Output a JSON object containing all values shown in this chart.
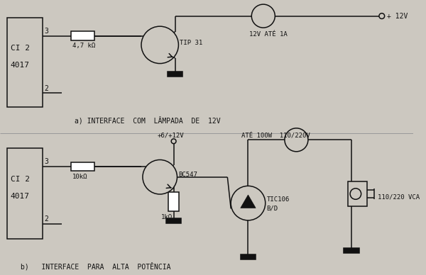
{
  "bg": "#ccc8c0",
  "lc": "#111111",
  "lw": 1.1,
  "title_a": "a) INTERFACE  COM  LÂMPADA  DE  12V",
  "title_b": "b)   INTERFACE  PARA  ALTA  POTÊNCIA",
  "r1_label": "4,7 kΩ",
  "tip31": "TIP 31",
  "label_12v": "12V ATÉ 1A",
  "plus12v": "+ 12V",
  "plus6_12v": "+6/+12V",
  "r2_label": "10kΩ",
  "r3_label": "1kΩ",
  "bc547": "BC547",
  "tic106_a": "TIC106",
  "tic106_b": "B/D",
  "ate100w": "ATÉ 100W  110/220V",
  "vca": "110/220 VCA"
}
